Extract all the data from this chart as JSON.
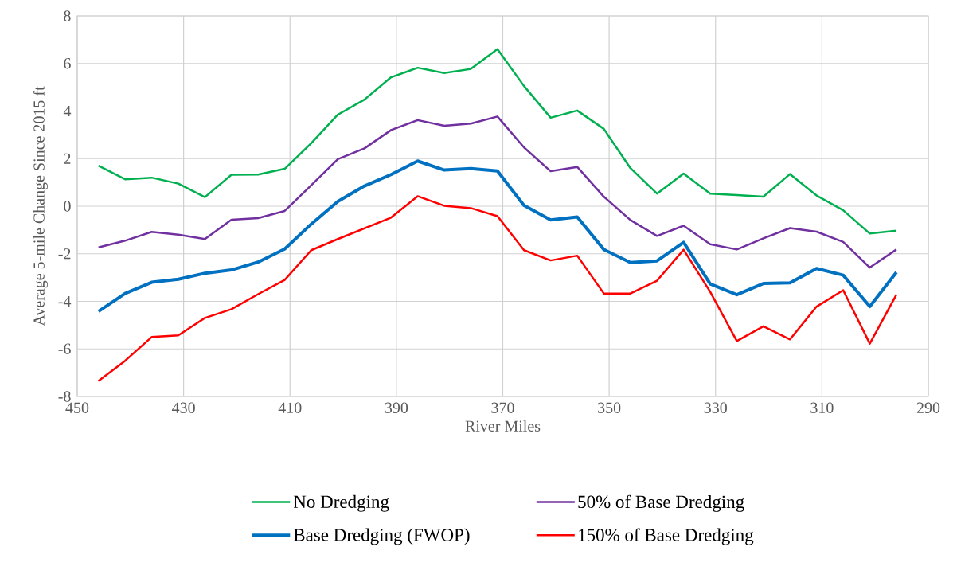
{
  "chart_data": {
    "type": "line",
    "xlabel": "River Miles",
    "ylabel": "Average 5-mile Change Since 2015 ft",
    "x": [
      446,
      441,
      436,
      431,
      426,
      421,
      416,
      411,
      406,
      401,
      396,
      391,
      386,
      381,
      376,
      371,
      366,
      361,
      356,
      351,
      346,
      341,
      336,
      331,
      326,
      321,
      316,
      311,
      306,
      301,
      296
    ],
    "series": [
      {
        "name": "No Dredging",
        "color": "#00b050",
        "values": [
          1.7,
          1.13,
          1.2,
          0.95,
          0.38,
          1.32,
          1.33,
          1.57,
          2.65,
          3.85,
          4.48,
          5.42,
          5.82,
          5.6,
          5.77,
          6.6,
          5.05,
          3.72,
          4.02,
          3.25,
          1.6,
          0.53,
          1.37,
          0.53,
          0.47,
          0.4,
          1.35,
          0.45,
          -0.17,
          -1.15,
          -1.03
        ]
      },
      {
        "name": "50% of Base Dredging",
        "color": "#7030a0",
        "values": [
          -1.73,
          -1.45,
          -1.08,
          -1.2,
          -1.38,
          -0.57,
          -0.5,
          -0.2,
          0.88,
          1.98,
          2.43,
          3.2,
          3.62,
          3.38,
          3.47,
          3.77,
          2.47,
          1.47,
          1.65,
          0.4,
          -0.58,
          -1.25,
          -0.82,
          -1.6,
          -1.82,
          -1.35,
          -0.92,
          -1.07,
          -1.5,
          -2.58,
          -1.82
        ]
      },
      {
        "name": "Base Dredging (FWOP)",
        "color": "#0070c0",
        "values": [
          -4.42,
          -3.67,
          -3.2,
          -3.07,
          -2.82,
          -2.68,
          -2.35,
          -1.8,
          -0.75,
          0.2,
          0.85,
          1.33,
          1.9,
          1.52,
          1.58,
          1.48,
          0.03,
          -0.58,
          -0.45,
          -1.82,
          -2.37,
          -2.3,
          -1.52,
          -3.27,
          -3.72,
          -3.25,
          -3.22,
          -2.62,
          -2.9,
          -4.22,
          -2.78
        ]
      },
      {
        "name": "150% of Base Dredging",
        "color": "#ff0000",
        "values": [
          -7.35,
          -6.5,
          -5.5,
          -5.43,
          -4.7,
          -4.33,
          -3.7,
          -3.1,
          -1.85,
          -1.38,
          -0.93,
          -0.48,
          0.42,
          0.02,
          -0.08,
          -0.42,
          -1.85,
          -2.28,
          -2.08,
          -3.67,
          -3.67,
          -3.13,
          -1.83,
          -3.6,
          -5.67,
          -5.05,
          -5.6,
          -4.22,
          -3.53,
          -5.78,
          -3.72
        ]
      }
    ],
    "xlim": [
      450,
      290
    ],
    "xticks": [
      450,
      430,
      410,
      390,
      370,
      350,
      330,
      310,
      290
    ],
    "ylim": [
      -8,
      8
    ],
    "yticks": [
      -8,
      -6,
      -4,
      -2,
      0,
      2,
      4,
      6,
      8
    ],
    "grid": true,
    "legend": "bottom",
    "marker": "none",
    "line_style": "solid"
  }
}
